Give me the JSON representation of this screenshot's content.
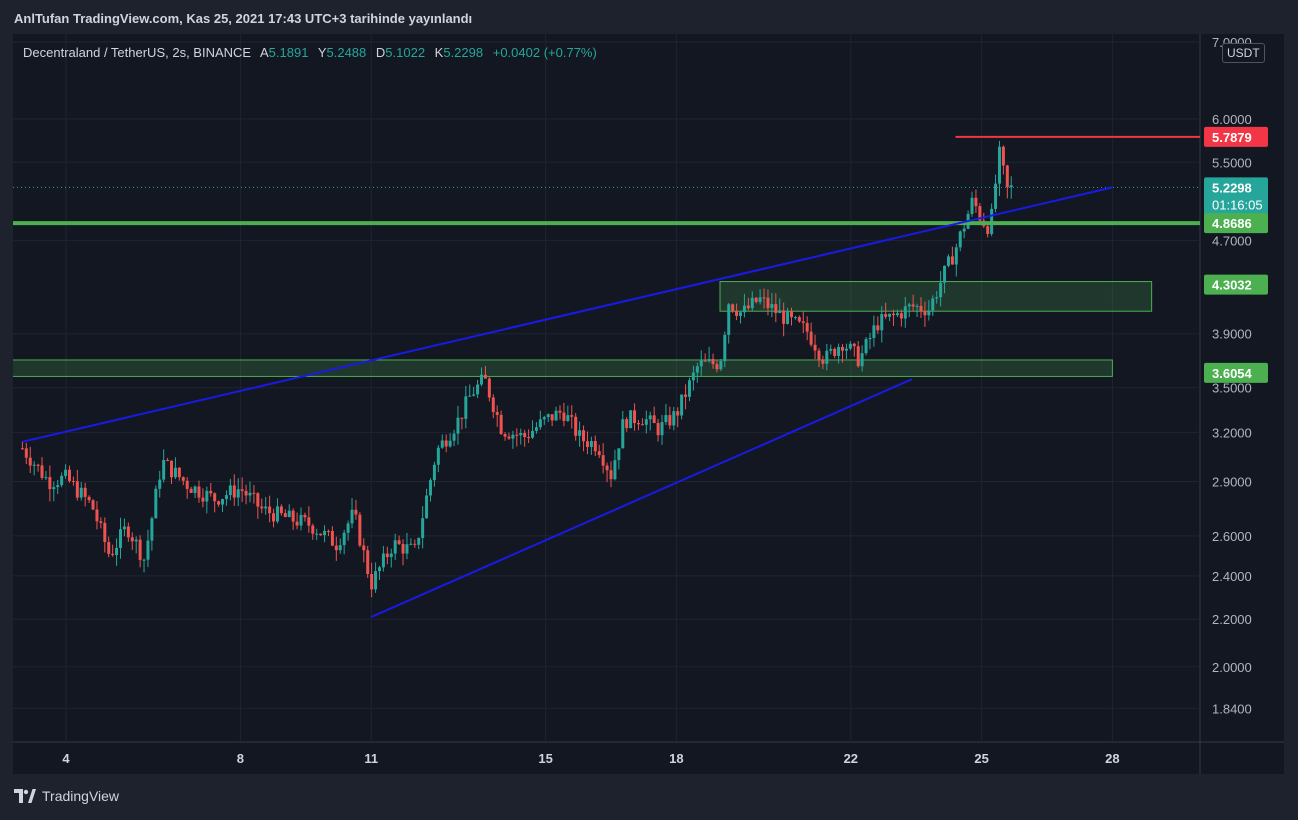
{
  "header": {
    "publish_text": "AnlTufan TradingView.com, Kas 25, 2021 17:43 UTC+3 tarihinde yayınlandı"
  },
  "legend": {
    "symbol": "Decentraland / TetherUS, 2s, BINANCE",
    "open_label": "A",
    "open_value": "5.1891",
    "high_label": "Y",
    "high_value": "5.2488",
    "low_label": "D",
    "low_value": "5.1022",
    "close_label": "K",
    "close_value": "5.2298",
    "change": "+0.0402 (+0.77%)"
  },
  "currency": "USDT",
  "footer": {
    "brand": "TradingView"
  },
  "colors": {
    "up": "#26a69a",
    "down": "#ef5350",
    "trendline": "#1a1ae6",
    "support": "#4caf50",
    "resistance": "#f23645",
    "price": "#26a69a"
  },
  "chart_data": {
    "type": "candlestick",
    "y_scale": "log",
    "ylim": [
      1.72,
      7.0
    ],
    "y_ticks": [
      "7.0000",
      "6.0000",
      "5.5000",
      "4.7000",
      "3.9000",
      "3.5000",
      "3.2000",
      "2.9000",
      "2.6000",
      "2.4000",
      "2.2000",
      "2.0000",
      "1.8400"
    ],
    "x_ticks": [
      "4",
      "8",
      "11",
      "15",
      "18",
      "22",
      "25",
      "28"
    ],
    "price_labels": [
      {
        "value": "5.7879",
        "color": "#f23645"
      },
      {
        "value": "5.2298",
        "sub": "01:16:05",
        "color": "#26a69a"
      },
      {
        "value": "4.8686",
        "color": "#4caf50"
      },
      {
        "value": "4.3032",
        "color": "#4caf50"
      },
      {
        "value": "3.6054",
        "color": "#4caf50"
      }
    ],
    "anchors": [
      [
        3.0,
        3.1
      ],
      [
        3.6,
        2.9
      ],
      [
        4.0,
        2.92
      ],
      [
        4.6,
        2.76
      ],
      [
        5.0,
        2.5
      ],
      [
        5.4,
        2.65
      ],
      [
        5.8,
        2.48
      ],
      [
        6.2,
        3.02
      ],
      [
        6.8,
        2.88
      ],
      [
        7.4,
        2.8
      ],
      [
        8.0,
        2.86
      ],
      [
        8.5,
        2.74
      ],
      [
        9.0,
        2.7
      ],
      [
        9.6,
        2.66
      ],
      [
        10.2,
        2.56
      ],
      [
        10.6,
        2.72
      ],
      [
        11.0,
        2.36
      ],
      [
        11.5,
        2.56
      ],
      [
        12.0,
        2.52
      ],
      [
        12.5,
        3.08
      ],
      [
        13.0,
        3.28
      ],
      [
        13.3,
        3.46
      ],
      [
        13.6,
        3.56
      ],
      [
        14.0,
        3.22
      ],
      [
        14.5,
        3.17
      ],
      [
        15.0,
        3.28
      ],
      [
        15.4,
        3.34
      ],
      [
        15.8,
        3.16
      ],
      [
        16.2,
        3.12
      ],
      [
        16.5,
        2.94
      ],
      [
        16.8,
        3.28
      ],
      [
        17.2,
        3.3
      ],
      [
        17.6,
        3.22
      ],
      [
        18.0,
        3.32
      ],
      [
        18.5,
        3.66
      ],
      [
        19.0,
        3.68
      ],
      [
        19.2,
        4.16
      ],
      [
        19.5,
        4.06
      ],
      [
        19.9,
        4.18
      ],
      [
        20.2,
        4.1
      ],
      [
        20.6,
        4.0
      ],
      [
        21.0,
        3.92
      ],
      [
        21.4,
        3.7
      ],
      [
        21.8,
        3.84
      ],
      [
        22.2,
        3.7
      ],
      [
        22.6,
        3.98
      ],
      [
        23.0,
        4.04
      ],
      [
        23.4,
        4.12
      ],
      [
        23.8,
        4.1
      ],
      [
        24.1,
        4.36
      ],
      [
        24.4,
        4.62
      ],
      [
        24.6,
        4.85
      ],
      [
        24.8,
        5.1
      ],
      [
        25.0,
        4.9
      ],
      [
        25.2,
        4.82
      ],
      [
        25.4,
        5.6
      ],
      [
        25.6,
        5.18
      ],
      [
        25.7,
        5.23
      ]
    ],
    "trendlines": [
      {
        "name": "upper-resistance-trendline",
        "from": [
          3.0,
          3.14
        ],
        "to": [
          28.0,
          5.23
        ]
      },
      {
        "name": "lower-support-trendline",
        "from": [
          11.0,
          2.21
        ],
        "to": [
          23.4,
          3.56
        ]
      }
    ],
    "horizontal_lines": [
      {
        "name": "red-resistance-line",
        "value": 5.7879,
        "from_x": 24.4
      },
      {
        "name": "green-support-line",
        "value": 4.8686,
        "from_x": 2.0
      }
    ],
    "zones": [
      {
        "name": "upper-demand-zone",
        "x_from": 19.0,
        "x_to": 28.9,
        "y_from": 4.08,
        "y_to": 4.33
      },
      {
        "name": "lower-demand-zone",
        "x_from": 2.0,
        "x_to": 28.0,
        "y_from": 3.58,
        "y_to": 3.7
      }
    ]
  }
}
